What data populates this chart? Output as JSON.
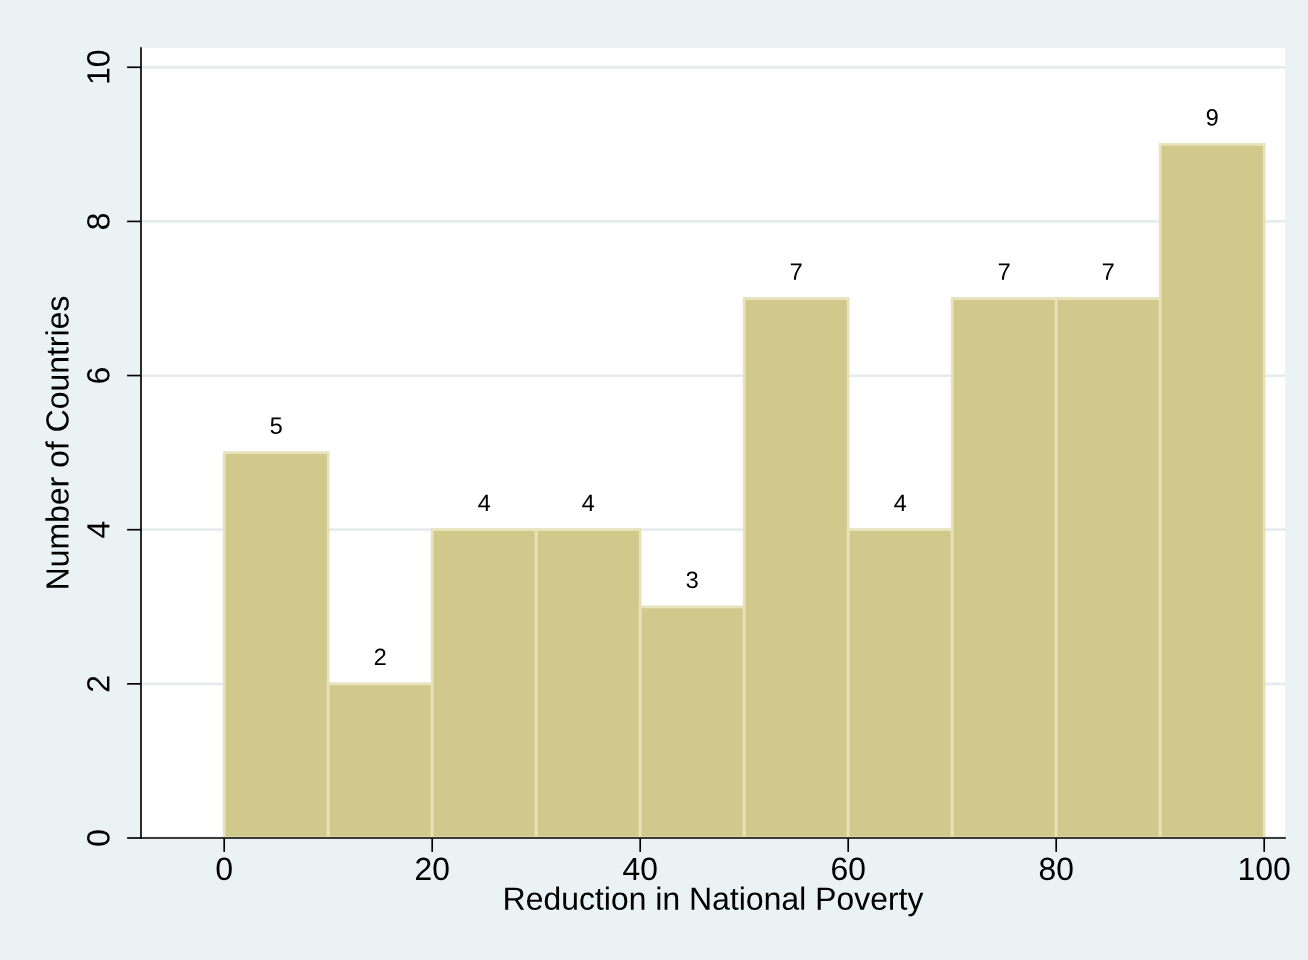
{
  "chart_data": {
    "type": "histogram",
    "xlabel": "Reduction in National Poverty",
    "ylabel": "Number of Countries",
    "bins": [
      0,
      10,
      20,
      30,
      40,
      50,
      60,
      70,
      80,
      90,
      100
    ],
    "values": [
      5,
      2,
      4,
      4,
      3,
      7,
      4,
      7,
      7,
      9
    ],
    "color": "#d1c88c",
    "data_labels": true,
    "xlim": [
      -8,
      102
    ],
    "xticks": [
      0,
      20,
      40,
      60,
      80,
      100
    ],
    "ylim": [
      0,
      10.25
    ],
    "yticks": [
      0,
      2,
      4,
      6,
      8,
      10
    ],
    "grid": "y"
  }
}
